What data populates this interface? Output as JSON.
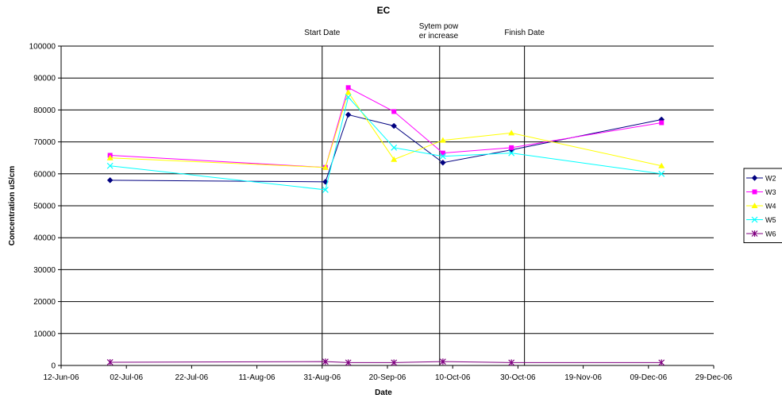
{
  "chart_data": {
    "type": "line",
    "title": "EC",
    "xlabel": "Date",
    "ylabel": "Concentration uS/cm",
    "ylim": [
      0,
      100000
    ],
    "y_ticks": [
      0,
      10000,
      20000,
      30000,
      40000,
      50000,
      60000,
      70000,
      80000,
      90000,
      100000
    ],
    "xlim": [
      "2006-06-12",
      "2006-12-29"
    ],
    "x_ticks": [
      "2006-06-12",
      "2006-07-02",
      "2006-07-22",
      "2006-08-11",
      "2006-08-31",
      "2006-09-20",
      "2006-10-10",
      "2006-10-30",
      "2006-11-19",
      "2006-12-09",
      "2006-12-29"
    ],
    "x_tick_labels": [
      "12-Jun-06",
      "02-Jul-06",
      "22-Jul-06",
      "11-Aug-06",
      "31-Aug-06",
      "20-Sep-06",
      "10-Oct-06",
      "30-Oct-06",
      "19-Nov-06",
      "09-Dec-06",
      "29-Dec-06"
    ],
    "grid": "horizontal",
    "legend_position": "right",
    "x": [
      "2006-06-27",
      "2006-09-01",
      "2006-09-08",
      "2006-09-22",
      "2006-10-07",
      "2006-10-28",
      "2006-12-13"
    ],
    "series": [
      {
        "name": "W2",
        "color": "#000080",
        "marker": "diamond",
        "points": [
          [
            "2006-06-27",
            58000
          ],
          [
            "2006-09-01",
            57500
          ],
          [
            "2006-09-08",
            78500
          ],
          [
            "2006-09-22",
            75000
          ],
          [
            "2006-10-07",
            63500
          ],
          [
            "2006-10-28",
            67500
          ],
          [
            "2006-12-13",
            77000
          ]
        ]
      },
      {
        "name": "W3",
        "color": "#ff00ff",
        "marker": "square",
        "points": [
          [
            "2006-06-27",
            65800
          ],
          [
            "2006-09-01",
            62000
          ],
          [
            "2006-09-08",
            87000
          ],
          [
            "2006-09-22",
            79500
          ],
          [
            "2006-10-07",
            66500
          ],
          [
            "2006-10-28",
            68200
          ],
          [
            "2006-12-13",
            76000
          ]
        ]
      },
      {
        "name": "W4",
        "color": "#ffff00",
        "marker": "triangle",
        "points": [
          [
            "2006-06-27",
            65000
          ],
          [
            "2006-09-01",
            62000
          ],
          [
            "2006-09-08",
            85500
          ],
          [
            "2006-09-22",
            64500
          ],
          [
            "2006-10-07",
            70500
          ],
          [
            "2006-10-28",
            72800
          ],
          [
            "2006-12-13",
            62500
          ]
        ]
      },
      {
        "name": "W5",
        "color": "#00ffff",
        "marker": "x",
        "points": [
          [
            "2006-06-27",
            62500
          ],
          [
            "2006-09-01",
            55000
          ],
          [
            "2006-09-08",
            84000
          ],
          [
            "2006-09-22",
            68200
          ],
          [
            "2006-10-07",
            65500
          ],
          [
            "2006-10-28",
            66500
          ],
          [
            "2006-12-13",
            60000
          ]
        ]
      },
      {
        "name": "W6",
        "color": "#800080",
        "marker": "star",
        "points": [
          [
            "2006-06-27",
            1000
          ],
          [
            "2006-09-01",
            1200
          ],
          [
            "2006-09-08",
            900
          ],
          [
            "2006-09-22",
            900
          ],
          [
            "2006-10-07",
            1200
          ],
          [
            "2006-10-28",
            900
          ],
          [
            "2006-12-13",
            900
          ]
        ]
      }
    ],
    "annotations": [
      {
        "text": "Start Date",
        "date": "2006-08-31"
      },
      {
        "text": "Sytem pow er increase",
        "date": "2006-10-06"
      },
      {
        "text": "Finish Date",
        "date": "2006-11-01"
      }
    ]
  }
}
